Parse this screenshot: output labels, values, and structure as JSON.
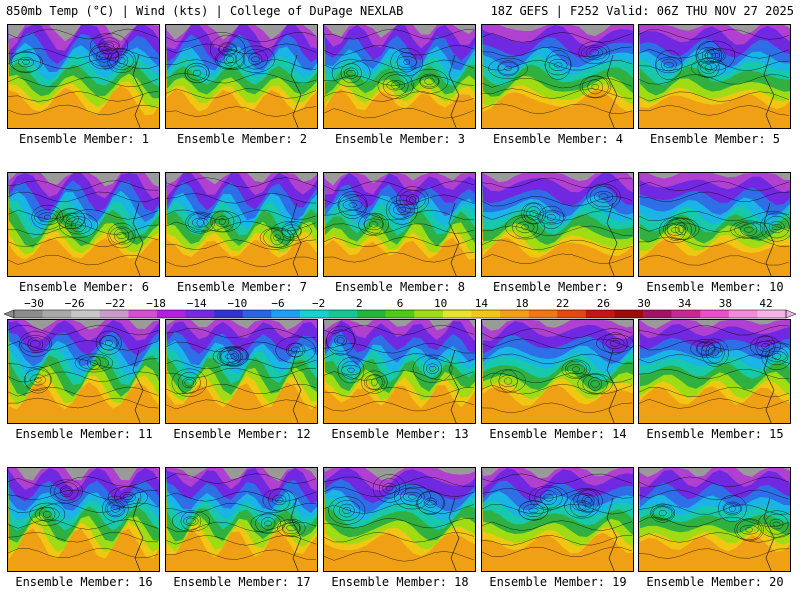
{
  "header": {
    "title": "850mb Temp (°C) | Wind (kts) | College of DuPage NEXLAB",
    "run_info": "18Z GEFS | F252 Valid: 06Z THU NOV 27 2025"
  },
  "label_prefix": "Ensemble Member: ",
  "members": [
    {
      "label": "Ensemble Member: 1"
    },
    {
      "label": "Ensemble Member: 2"
    },
    {
      "label": "Ensemble Member: 3"
    },
    {
      "label": "Ensemble Member: 4"
    },
    {
      "label": "Ensemble Member: 5"
    },
    {
      "label": "Ensemble Member: 6"
    },
    {
      "label": "Ensemble Member: 7"
    },
    {
      "label": "Ensemble Member: 8"
    },
    {
      "label": "Ensemble Member: 9"
    },
    {
      "label": "Ensemble Member: 10"
    },
    {
      "label": "Ensemble Member: 11"
    },
    {
      "label": "Ensemble Member: 12"
    },
    {
      "label": "Ensemble Member: 13"
    },
    {
      "label": "Ensemble Member: 14"
    },
    {
      "label": "Ensemble Member: 15"
    },
    {
      "label": "Ensemble Member: 16"
    },
    {
      "label": "Ensemble Member: 17"
    },
    {
      "label": "Ensemble Member: 18"
    },
    {
      "label": "Ensemble Member: 19"
    },
    {
      "label": "Ensemble Member: 20"
    }
  ],
  "colorbar": {
    "unit": "°C",
    "ticks": [
      -30,
      -26,
      -22,
      -18,
      -14,
      -10,
      -6,
      -2,
      2,
      6,
      10,
      14,
      18,
      22,
      26,
      30,
      34,
      38,
      42
    ],
    "tick_labels": [
      "−30",
      "−26",
      "−22",
      "−18",
      "−14",
      "−10",
      "−6",
      "−2",
      "2",
      "6",
      "10",
      "14",
      "18",
      "22",
      "26",
      "30",
      "34",
      "38",
      "42"
    ],
    "colors": [
      "#8c8c8c",
      "#a9a9a9",
      "#c8c8c8",
      "#c89bc8",
      "#d050d0",
      "#b020e0",
      "#7828e0",
      "#3232d2",
      "#2864e6",
      "#1ea0f0",
      "#14d2d2",
      "#14c896",
      "#28b43c",
      "#50c81e",
      "#a0dc14",
      "#e6e628",
      "#f0c814",
      "#f0a014",
      "#f07814",
      "#e64614",
      "#c81414",
      "#a00a0a",
      "#a01464",
      "#c82896",
      "#e650c8",
      "#f08cdc",
      "#f5b4e6"
    ]
  }
}
